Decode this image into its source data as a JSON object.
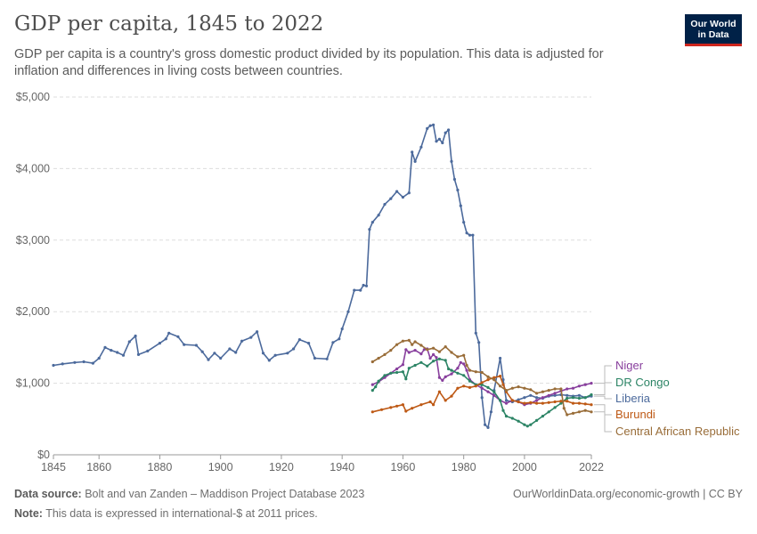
{
  "header": {
    "title": "GDP per capita, 1845 to 2022",
    "subtitle": "GDP per capita is a country's gross domestic product divided by its population. This data is adjusted for inflation and differences in living costs between countries.",
    "logo_line1": "Our World",
    "logo_line2": "in Data"
  },
  "footer": {
    "source_label": "Data source:",
    "source_text": "Bolt and van Zanden – Maddison Project Database 2023",
    "note_label": "Note:",
    "note_text": "This data is expressed in international-$ at 2011 prices.",
    "link_text": "OurWorldinData.org/economic-growth | CC BY"
  },
  "chart_data": {
    "type": "line",
    "title": "GDP per capita, 1845 to 2022",
    "xlim": [
      1845,
      2022
    ],
    "ylim": [
      0,
      5000
    ],
    "x_ticks": [
      1845,
      1860,
      1880,
      1900,
      1920,
      1940,
      1960,
      1980,
      2000,
      2022
    ],
    "y_ticks": [
      0,
      1000,
      2000,
      3000,
      4000,
      5000
    ],
    "y_tick_labels": [
      "$0",
      "$1,000",
      "$2,000",
      "$3,000",
      "$4,000",
      "$5,000"
    ],
    "grid": true,
    "legend_position": "right",
    "series": [
      {
        "name": "Liberia",
        "color": "#4c6a9c",
        "points": [
          [
            1845,
            1250
          ],
          [
            1848,
            1270
          ],
          [
            1852,
            1290
          ],
          [
            1855,
            1300
          ],
          [
            1858,
            1280
          ],
          [
            1860,
            1350
          ],
          [
            1862,
            1500
          ],
          [
            1864,
            1460
          ],
          [
            1866,
            1430
          ],
          [
            1868,
            1390
          ],
          [
            1870,
            1580
          ],
          [
            1872,
            1660
          ],
          [
            1873,
            1400
          ],
          [
            1876,
            1450
          ],
          [
            1880,
            1560
          ],
          [
            1882,
            1620
          ],
          [
            1883,
            1700
          ],
          [
            1886,
            1650
          ],
          [
            1888,
            1540
          ],
          [
            1892,
            1530
          ],
          [
            1894,
            1440
          ],
          [
            1896,
            1330
          ],
          [
            1898,
            1420
          ],
          [
            1900,
            1350
          ],
          [
            1903,
            1480
          ],
          [
            1905,
            1430
          ],
          [
            1907,
            1590
          ],
          [
            1910,
            1640
          ],
          [
            1912,
            1720
          ],
          [
            1914,
            1420
          ],
          [
            1916,
            1320
          ],
          [
            1918,
            1390
          ],
          [
            1922,
            1420
          ],
          [
            1924,
            1480
          ],
          [
            1926,
            1610
          ],
          [
            1929,
            1560
          ],
          [
            1931,
            1350
          ],
          [
            1935,
            1340
          ],
          [
            1937,
            1570
          ],
          [
            1939,
            1620
          ],
          [
            1940,
            1760
          ],
          [
            1942,
            2000
          ],
          [
            1944,
            2300
          ],
          [
            1946,
            2300
          ],
          [
            1947,
            2370
          ],
          [
            1948,
            2360
          ],
          [
            1949,
            3150
          ],
          [
            1950,
            3250
          ],
          [
            1952,
            3350
          ],
          [
            1954,
            3500
          ],
          [
            1956,
            3580
          ],
          [
            1958,
            3680
          ],
          [
            1960,
            3600
          ],
          [
            1962,
            3660
          ],
          [
            1963,
            4230
          ],
          [
            1964,
            4100
          ],
          [
            1966,
            4300
          ],
          [
            1968,
            4560
          ],
          [
            1969,
            4600
          ],
          [
            1970,
            4610
          ],
          [
            1971,
            4380
          ],
          [
            1972,
            4410
          ],
          [
            1973,
            4360
          ],
          [
            1974,
            4500
          ],
          [
            1975,
            4540
          ],
          [
            1976,
            4100
          ],
          [
            1977,
            3850
          ],
          [
            1978,
            3700
          ],
          [
            1979,
            3480
          ],
          [
            1980,
            3250
          ],
          [
            1981,
            3100
          ],
          [
            1982,
            3070
          ],
          [
            1983,
            3070
          ],
          [
            1984,
            1700
          ],
          [
            1985,
            1570
          ],
          [
            1986,
            800
          ],
          [
            1987,
            420
          ],
          [
            1988,
            380
          ],
          [
            1989,
            600
          ],
          [
            1990,
            900
          ],
          [
            1992,
            1350
          ],
          [
            1993,
            1050
          ],
          [
            1994,
            760
          ],
          [
            1996,
            740
          ],
          [
            1998,
            770
          ],
          [
            2000,
            800
          ],
          [
            2002,
            830
          ],
          [
            2004,
            800
          ],
          [
            2006,
            790
          ],
          [
            2008,
            820
          ],
          [
            2010,
            830
          ],
          [
            2012,
            840
          ],
          [
            2014,
            830
          ],
          [
            2016,
            820
          ],
          [
            2018,
            830
          ],
          [
            2020,
            800
          ],
          [
            2022,
            820
          ]
        ]
      },
      {
        "name": "Niger",
        "color": "#883f9d",
        "points": [
          [
            1950,
            980
          ],
          [
            1952,
            1020
          ],
          [
            1954,
            1080
          ],
          [
            1956,
            1140
          ],
          [
            1958,
            1200
          ],
          [
            1960,
            1260
          ],
          [
            1961,
            1470
          ],
          [
            1962,
            1430
          ],
          [
            1964,
            1460
          ],
          [
            1966,
            1410
          ],
          [
            1967,
            1470
          ],
          [
            1968,
            1480
          ],
          [
            1969,
            1350
          ],
          [
            1970,
            1400
          ],
          [
            1971,
            1360
          ],
          [
            1972,
            1080
          ],
          [
            1973,
            1040
          ],
          [
            1974,
            1090
          ],
          [
            1976,
            1130
          ],
          [
            1978,
            1210
          ],
          [
            1979,
            1290
          ],
          [
            1980,
            1270
          ],
          [
            1981,
            1180
          ],
          [
            1982,
            1050
          ],
          [
            1984,
            980
          ],
          [
            1986,
            930
          ],
          [
            1988,
            880
          ],
          [
            1990,
            830
          ],
          [
            1992,
            760
          ],
          [
            1994,
            720
          ],
          [
            1996,
            760
          ],
          [
            1998,
            740
          ],
          [
            2000,
            700
          ],
          [
            2002,
            720
          ],
          [
            2004,
            760
          ],
          [
            2006,
            800
          ],
          [
            2008,
            830
          ],
          [
            2010,
            860
          ],
          [
            2012,
            890
          ],
          [
            2014,
            920
          ],
          [
            2016,
            930
          ],
          [
            2018,
            960
          ],
          [
            2020,
            980
          ],
          [
            2022,
            1000
          ]
        ]
      },
      {
        "name": "DR Congo",
        "color": "#2c8465",
        "points": [
          [
            1950,
            900
          ],
          [
            1951,
            950
          ],
          [
            1952,
            1030
          ],
          [
            1954,
            1110
          ],
          [
            1956,
            1140
          ],
          [
            1958,
            1150
          ],
          [
            1960,
            1160
          ],
          [
            1961,
            1060
          ],
          [
            1962,
            1210
          ],
          [
            1964,
            1250
          ],
          [
            1966,
            1290
          ],
          [
            1968,
            1240
          ],
          [
            1970,
            1310
          ],
          [
            1972,
            1340
          ],
          [
            1974,
            1320
          ],
          [
            1975,
            1200
          ],
          [
            1976,
            1180
          ],
          [
            1978,
            1140
          ],
          [
            1980,
            1110
          ],
          [
            1982,
            1030
          ],
          [
            1984,
            980
          ],
          [
            1986,
            980
          ],
          [
            1988,
            940
          ],
          [
            1990,
            880
          ],
          [
            1992,
            760
          ],
          [
            1993,
            620
          ],
          [
            1994,
            540
          ],
          [
            1996,
            510
          ],
          [
            1998,
            470
          ],
          [
            2000,
            420
          ],
          [
            2001,
            400
          ],
          [
            2002,
            420
          ],
          [
            2004,
            480
          ],
          [
            2006,
            540
          ],
          [
            2008,
            600
          ],
          [
            2010,
            660
          ],
          [
            2012,
            720
          ],
          [
            2014,
            790
          ],
          [
            2016,
            800
          ],
          [
            2018,
            790
          ],
          [
            2020,
            800
          ],
          [
            2022,
            840
          ]
        ]
      },
      {
        "name": "Burundi",
        "color": "#be5915",
        "points": [
          [
            1950,
            600
          ],
          [
            1953,
            630
          ],
          [
            1956,
            660
          ],
          [
            1958,
            680
          ],
          [
            1960,
            700
          ],
          [
            1961,
            610
          ],
          [
            1963,
            650
          ],
          [
            1966,
            700
          ],
          [
            1969,
            740
          ],
          [
            1970,
            700
          ],
          [
            1972,
            880
          ],
          [
            1974,
            760
          ],
          [
            1976,
            820
          ],
          [
            1978,
            930
          ],
          [
            1980,
            960
          ],
          [
            1982,
            940
          ],
          [
            1984,
            960
          ],
          [
            1986,
            1010
          ],
          [
            1988,
            1050
          ],
          [
            1990,
            1080
          ],
          [
            1992,
            1100
          ],
          [
            1993,
            980
          ],
          [
            1994,
            880
          ],
          [
            1996,
            760
          ],
          [
            1998,
            740
          ],
          [
            2000,
            720
          ],
          [
            2002,
            730
          ],
          [
            2004,
            720
          ],
          [
            2006,
            720
          ],
          [
            2008,
            730
          ],
          [
            2010,
            740
          ],
          [
            2012,
            750
          ],
          [
            2014,
            750
          ],
          [
            2016,
            720
          ],
          [
            2018,
            720
          ],
          [
            2020,
            710
          ],
          [
            2022,
            700
          ]
        ]
      },
      {
        "name": "Central African Republic",
        "color": "#996d39",
        "points": [
          [
            1950,
            1300
          ],
          [
            1952,
            1350
          ],
          [
            1954,
            1400
          ],
          [
            1956,
            1460
          ],
          [
            1958,
            1540
          ],
          [
            1960,
            1590
          ],
          [
            1962,
            1600
          ],
          [
            1963,
            1540
          ],
          [
            1964,
            1580
          ],
          [
            1966,
            1530
          ],
          [
            1968,
            1470
          ],
          [
            1970,
            1490
          ],
          [
            1972,
            1440
          ],
          [
            1974,
            1510
          ],
          [
            1976,
            1430
          ],
          [
            1978,
            1370
          ],
          [
            1980,
            1390
          ],
          [
            1981,
            1250
          ],
          [
            1982,
            1180
          ],
          [
            1984,
            1160
          ],
          [
            1986,
            1150
          ],
          [
            1988,
            1090
          ],
          [
            1990,
            1050
          ],
          [
            1992,
            960
          ],
          [
            1994,
            900
          ],
          [
            1996,
            930
          ],
          [
            1998,
            950
          ],
          [
            2000,
            930
          ],
          [
            2002,
            910
          ],
          [
            2004,
            860
          ],
          [
            2006,
            880
          ],
          [
            2008,
            900
          ],
          [
            2010,
            920
          ],
          [
            2012,
            920
          ],
          [
            2013,
            650
          ],
          [
            2014,
            560
          ],
          [
            2016,
            580
          ],
          [
            2018,
            600
          ],
          [
            2020,
            620
          ],
          [
            2022,
            600
          ]
        ]
      }
    ]
  }
}
